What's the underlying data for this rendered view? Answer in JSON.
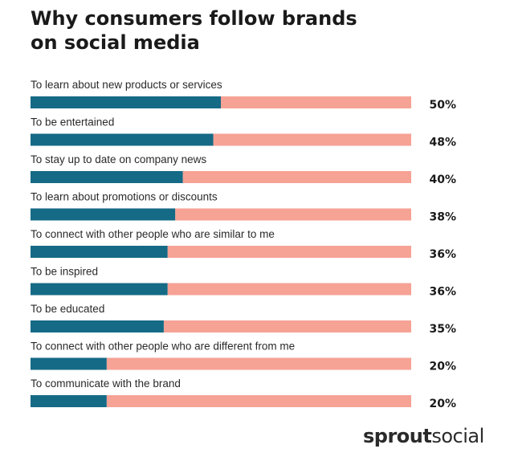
{
  "chart_data": {
    "type": "bar",
    "orientation": "horizontal",
    "stacked_remainder": true,
    "title": "Why consumers follow brands on social media",
    "title_lines": [
      "Why consumers follow brands",
      "on social media"
    ],
    "categories": [
      "To learn about new products or services",
      "To be entertained",
      "To stay up to date on company news",
      "To learn about promotions or discounts",
      "To connect with other people who are similar to me",
      "To be inspired",
      "To be educated",
      "To connect with other people who are different from me",
      "To communicate with the brand"
    ],
    "values": [
      50,
      48,
      40,
      38,
      36,
      36,
      35,
      20,
      20
    ],
    "value_labels": [
      "50%",
      "48%",
      "40%",
      "38%",
      "36%",
      "36%",
      "35%",
      "20%",
      "20%"
    ],
    "xlim": [
      0,
      100
    ],
    "unit": "%",
    "colors": {
      "value": "#156a86",
      "remainder": "#f6a295"
    },
    "grid": false,
    "legend": "none"
  },
  "brand": {
    "bold": "sprout",
    "regular": "social"
  }
}
